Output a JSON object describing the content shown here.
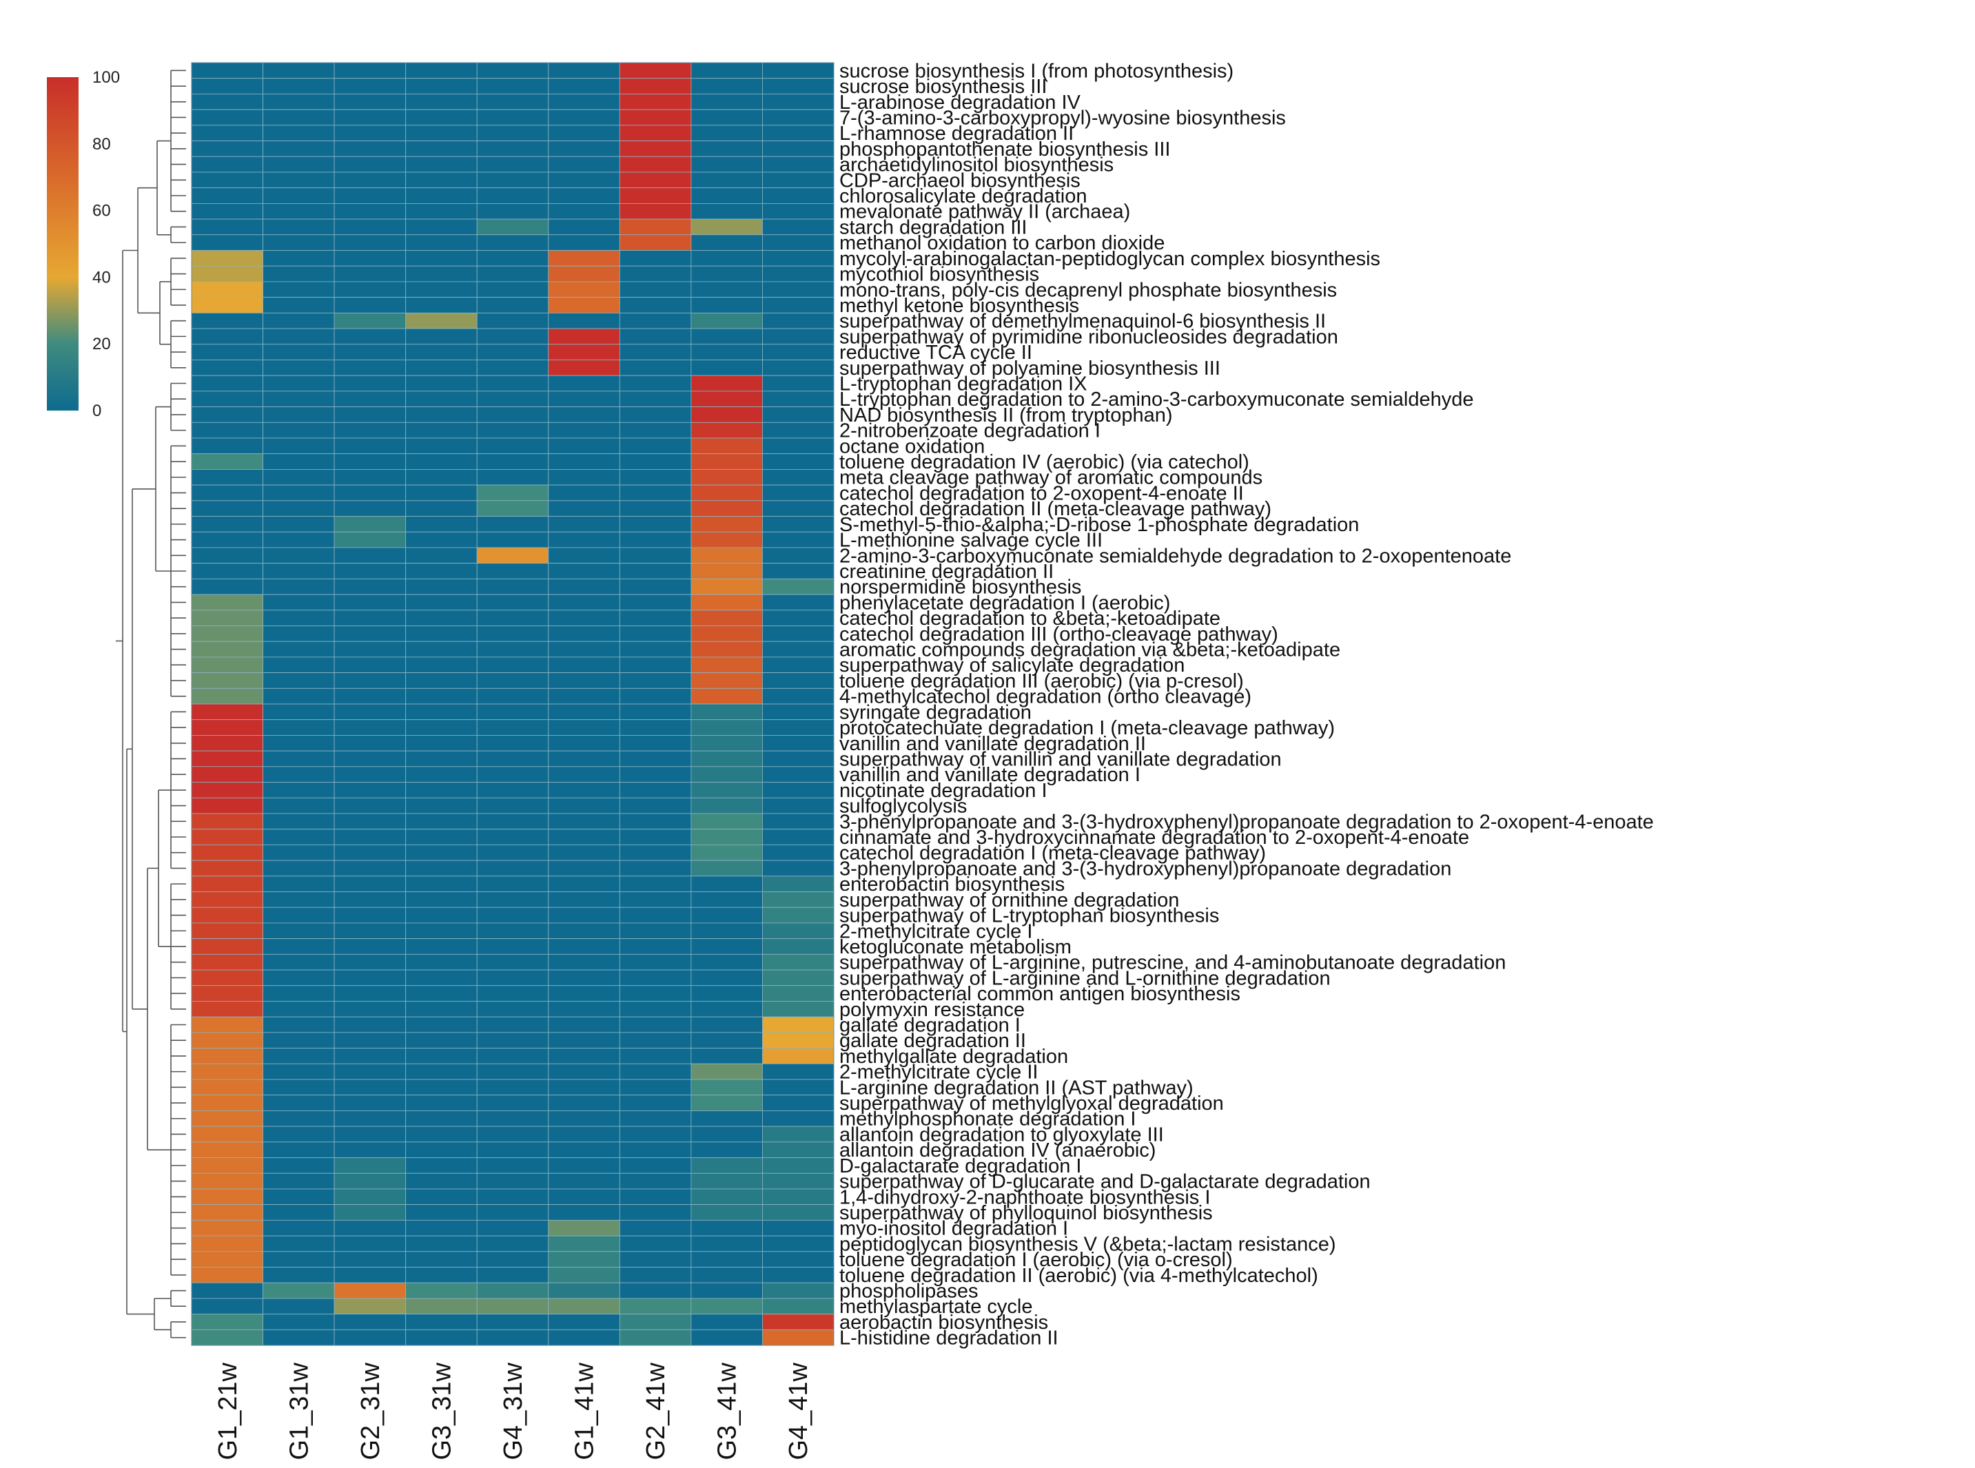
{
  "chart_data": {
    "type": "heatmap",
    "columns": [
      "G1_21w",
      "G1_31w",
      "G2_31w",
      "G3_31w",
      "G4_31w",
      "G1_41w",
      "G2_41w",
      "G3_41w",
      "G4_41w"
    ],
    "rows": [
      "sucrose biosynthesis I (from photosynthesis)",
      "sucrose biosynthesis III",
      "L-arabinose degradation IV",
      "7-(3-amino-3-carboxypropyl)-wyosine biosynthesis",
      "L-rhamnose degradation II",
      "phosphopantothenate biosynthesis III",
      "archaetidylinositol biosynthesis",
      "CDP-archaeol biosynthesis",
      "chlorosalicylate degradation",
      "mevalonate pathway II (archaea)",
      "starch degradation III",
      "methanol oxidation to carbon dioxide",
      "mycolyl-arabinogalactan-peptidoglycan complex biosynthesis",
      "mycothiol biosynthesis",
      "mono-trans, poly-cis decaprenyl phosphate biosynthesis",
      "methyl ketone biosynthesis",
      "superpathway of demethylmenaquinol-6 biosynthesis II",
      "superpathway of pyrimidine ribonucleosides degradation",
      "reductive TCA cycle II",
      "superpathway of polyamine biosynthesis III",
      "L-tryptophan degradation IX",
      "L-tryptophan degradation to 2-amino-3-carboxymuconate semialdehyde",
      "NAD biosynthesis II (from tryptophan)",
      "2-nitrobenzoate degradation I",
      "octane oxidation",
      "toluene degradation IV (aerobic) (via catechol)",
      "meta cleavage pathway of aromatic compounds",
      "catechol degradation to 2-oxopent-4-enoate II",
      "catechol degradation II (meta-cleavage pathway)",
      "S-methyl-5-thio-&alpha;-D-ribose 1-phosphate degradation",
      "L-methionine salvage cycle III",
      "2-amino-3-carboxymuconate semialdehyde degradation to 2-oxopentenoate",
      "creatinine degradation II",
      "norspermidine biosynthesis",
      "phenylacetate degradation I (aerobic)",
      "catechol degradation to &beta;-ketoadipate",
      "catechol degradation III (ortho-cleavage pathway)",
      "aromatic compounds degradation via &beta;-ketoadipate",
      "superpathway of salicylate degradation",
      "toluene degradation III (aerobic) (via p-cresol)",
      "4-methylcatechol degradation (ortho cleavage)",
      "syringate degradation",
      "protocatechuate degradation I (meta-cleavage pathway)",
      "vanillin and vanillate degradation II",
      "superpathway of vanillin and vanillate degradation",
      "vanillin and vanillate degradation I",
      "nicotinate degradation I",
      "sulfoglycolysis",
      "3-phenylpropanoate and 3-(3-hydroxyphenyl)propanoate degradation to 2-oxopent-4-enoate",
      "cinnamate and 3-hydroxycinnamate degradation to 2-oxopent-4-enoate",
      "catechol degradation I (meta-cleavage pathway)",
      "3-phenylpropanoate and 3-(3-hydroxyphenyl)propanoate degradation",
      "enterobactin biosynthesis",
      "superpathway of ornithine degradation",
      "superpathway of L-tryptophan biosynthesis",
      "2-methylcitrate cycle I",
      "ketogluconate metabolism",
      "superpathway of L-arginine, putrescine, and 4-aminobutanoate degradation",
      "superpathway of L-arginine and L-ornithine degradation",
      "enterobacterial common antigen biosynthesis",
      "polymyxin resistance",
      "gallate degradation I",
      "gallate degradation II",
      "methylgallate degradation",
      "2-methylcitrate cycle II",
      "L-arginine degradation II (AST pathway)",
      "superpathway of methylglyoxal degradation",
      "methylphosphonate degradation I",
      "allantoin degradation to glyoxylate III",
      "allantoin degradation IV (anaerobic)",
      "D-galactarate degradation I",
      "superpathway of D-glucarate and D-galactarate degradation",
      "1,4-dihydroxy-2-naphthoate biosynthesis I",
      "superpathway of phylloquinol biosynthesis",
      "myo-inositol degradation I",
      "peptidoglycan biosynthesis V (&beta;-lactam resistance)",
      "toluene degradation I (aerobic) (via o-cresol)",
      "toluene degradation II (aerobic) (via 4-methylcatechol)",
      "phospholipases",
      "methylaspartate cycle",
      "aerobactin biosynthesis",
      "L-histidine degradation II"
    ],
    "values": [
      [
        0,
        0,
        0,
        0,
        0,
        0,
        100,
        0,
        0
      ],
      [
        0,
        0,
        0,
        0,
        0,
        0,
        100,
        0,
        0
      ],
      [
        0,
        0,
        0,
        0,
        0,
        0,
        100,
        0,
        0
      ],
      [
        0,
        0,
        0,
        0,
        0,
        0,
        100,
        0,
        0
      ],
      [
        0,
        0,
        0,
        0,
        0,
        0,
        100,
        0,
        0
      ],
      [
        0,
        0,
        0,
        0,
        0,
        0,
        100,
        0,
        0
      ],
      [
        0,
        0,
        0,
        0,
        0,
        0,
        100,
        0,
        0
      ],
      [
        0,
        0,
        0,
        0,
        0,
        0,
        100,
        0,
        0
      ],
      [
        0,
        0,
        0,
        0,
        0,
        0,
        100,
        0,
        0
      ],
      [
        0,
        0,
        0,
        0,
        0,
        0,
        100,
        0,
        0
      ],
      [
        0,
        0,
        0,
        0,
        15,
        0,
        80,
        30,
        0
      ],
      [
        0,
        0,
        0,
        0,
        0,
        0,
        80,
        0,
        0
      ],
      [
        35,
        0,
        0,
        0,
        0,
        75,
        0,
        0,
        0
      ],
      [
        35,
        0,
        0,
        0,
        0,
        75,
        0,
        0,
        0
      ],
      [
        40,
        0,
        0,
        0,
        0,
        70,
        0,
        0,
        0
      ],
      [
        40,
        0,
        0,
        0,
        0,
        70,
        0,
        0,
        0
      ],
      [
        0,
        0,
        15,
        30,
        0,
        0,
        0,
        15,
        0
      ],
      [
        0,
        0,
        0,
        0,
        0,
        100,
        0,
        0,
        0
      ],
      [
        0,
        0,
        0,
        0,
        0,
        100,
        0,
        0,
        0
      ],
      [
        0,
        0,
        0,
        0,
        0,
        100,
        0,
        0,
        0
      ],
      [
        0,
        0,
        0,
        0,
        0,
        0,
        0,
        100,
        0
      ],
      [
        0,
        0,
        0,
        0,
        0,
        0,
        0,
        100,
        0
      ],
      [
        0,
        0,
        0,
        0,
        0,
        0,
        0,
        100,
        0
      ],
      [
        0,
        0,
        0,
        0,
        0,
        0,
        0,
        95,
        0
      ],
      [
        0,
        0,
        0,
        0,
        0,
        0,
        0,
        85,
        0
      ],
      [
        20,
        0,
        0,
        0,
        0,
        0,
        0,
        85,
        0
      ],
      [
        0,
        0,
        0,
        0,
        0,
        0,
        0,
        85,
        0
      ],
      [
        0,
        0,
        0,
        0,
        20,
        0,
        0,
        85,
        0
      ],
      [
        0,
        0,
        0,
        0,
        20,
        0,
        0,
        85,
        0
      ],
      [
        0,
        0,
        15,
        0,
        0,
        0,
        0,
        80,
        0
      ],
      [
        0,
        0,
        15,
        0,
        0,
        0,
        0,
        80,
        0
      ],
      [
        0,
        0,
        0,
        0,
        50,
        0,
        0,
        65,
        0
      ],
      [
        0,
        0,
        0,
        0,
        0,
        0,
        0,
        65,
        0
      ],
      [
        0,
        0,
        0,
        0,
        0,
        0,
        0,
        60,
        20
      ],
      [
        25,
        0,
        0,
        0,
        0,
        0,
        0,
        70,
        0
      ],
      [
        25,
        0,
        0,
        0,
        0,
        0,
        0,
        80,
        0
      ],
      [
        25,
        0,
        0,
        0,
        0,
        0,
        0,
        80,
        0
      ],
      [
        25,
        0,
        0,
        0,
        0,
        0,
        0,
        80,
        0
      ],
      [
        25,
        0,
        0,
        0,
        0,
        0,
        0,
        75,
        0
      ],
      [
        25,
        0,
        0,
        0,
        0,
        0,
        0,
        75,
        0
      ],
      [
        25,
        0,
        0,
        0,
        0,
        0,
        0,
        75,
        0
      ],
      [
        100,
        0,
        0,
        0,
        0,
        0,
        0,
        10,
        0
      ],
      [
        100,
        0,
        0,
        0,
        0,
        0,
        0,
        10,
        0
      ],
      [
        100,
        0,
        0,
        0,
        0,
        0,
        0,
        10,
        0
      ],
      [
        100,
        0,
        0,
        0,
        0,
        0,
        0,
        10,
        0
      ],
      [
        100,
        0,
        0,
        0,
        0,
        0,
        0,
        10,
        0
      ],
      [
        100,
        0,
        0,
        0,
        0,
        0,
        0,
        10,
        0
      ],
      [
        100,
        0,
        0,
        0,
        0,
        0,
        0,
        10,
        0
      ],
      [
        90,
        0,
        0,
        0,
        0,
        0,
        0,
        20,
        0
      ],
      [
        90,
        0,
        0,
        0,
        0,
        0,
        0,
        20,
        0
      ],
      [
        90,
        0,
        0,
        0,
        0,
        0,
        0,
        20,
        0
      ],
      [
        90,
        0,
        0,
        0,
        0,
        0,
        0,
        15,
        0
      ],
      [
        90,
        0,
        0,
        0,
        0,
        0,
        0,
        0,
        10
      ],
      [
        90,
        0,
        0,
        0,
        0,
        0,
        0,
        0,
        15
      ],
      [
        90,
        0,
        0,
        0,
        0,
        0,
        0,
        0,
        15
      ],
      [
        90,
        0,
        0,
        0,
        0,
        0,
        0,
        0,
        10
      ],
      [
        90,
        0,
        0,
        0,
        0,
        0,
        0,
        0,
        10
      ],
      [
        90,
        0,
        0,
        0,
        0,
        0,
        0,
        0,
        15
      ],
      [
        90,
        0,
        0,
        0,
        0,
        0,
        0,
        0,
        15
      ],
      [
        90,
        0,
        0,
        0,
        0,
        0,
        0,
        0,
        15
      ],
      [
        90,
        0,
        0,
        0,
        0,
        0,
        0,
        0,
        15
      ],
      [
        65,
        0,
        0,
        0,
        0,
        0,
        0,
        0,
        40
      ],
      [
        65,
        0,
        0,
        0,
        0,
        0,
        0,
        0,
        40
      ],
      [
        65,
        0,
        0,
        0,
        0,
        0,
        0,
        0,
        45
      ],
      [
        65,
        0,
        0,
        0,
        0,
        0,
        0,
        25,
        0
      ],
      [
        65,
        0,
        0,
        0,
        0,
        0,
        0,
        20,
        0
      ],
      [
        65,
        0,
        0,
        0,
        0,
        0,
        0,
        20,
        0
      ],
      [
        65,
        0,
        0,
        0,
        0,
        0,
        0,
        0,
        0
      ],
      [
        65,
        0,
        0,
        0,
        0,
        0,
        0,
        0,
        10
      ],
      [
        65,
        0,
        0,
        0,
        0,
        0,
        0,
        0,
        10
      ],
      [
        65,
        0,
        10,
        0,
        0,
        0,
        0,
        10,
        10
      ],
      [
        65,
        0,
        10,
        0,
        0,
        0,
        0,
        10,
        10
      ],
      [
        65,
        0,
        10,
        0,
        0,
        0,
        0,
        10,
        10
      ],
      [
        65,
        0,
        10,
        0,
        0,
        0,
        0,
        10,
        10
      ],
      [
        65,
        0,
        0,
        0,
        0,
        25,
        0,
        0,
        0
      ],
      [
        65,
        0,
        0,
        0,
        0,
        15,
        0,
        0,
        0
      ],
      [
        65,
        0,
        0,
        0,
        0,
        15,
        0,
        0,
        0
      ],
      [
        65,
        0,
        0,
        0,
        0,
        15,
        0,
        0,
        0
      ],
      [
        0,
        20,
        65,
        20,
        15,
        10,
        0,
        0,
        10
      ],
      [
        0,
        0,
        30,
        25,
        25,
        25,
        20,
        20,
        15
      ],
      [
        20,
        0,
        0,
        0,
        0,
        0,
        15,
        0,
        95
      ],
      [
        20,
        0,
        0,
        0,
        0,
        0,
        15,
        0,
        70
      ]
    ],
    "legend": {
      "min": 0,
      "max": 100,
      "ticks": [
        0,
        20,
        40,
        60,
        80,
        100
      ],
      "placement": "top-left"
    },
    "colorscale": [
      "#0e6b8f",
      "#3f8b7f",
      "#e6a832",
      "#d96a2b",
      "#c82e2a"
    ],
    "dendrogram": "left"
  }
}
